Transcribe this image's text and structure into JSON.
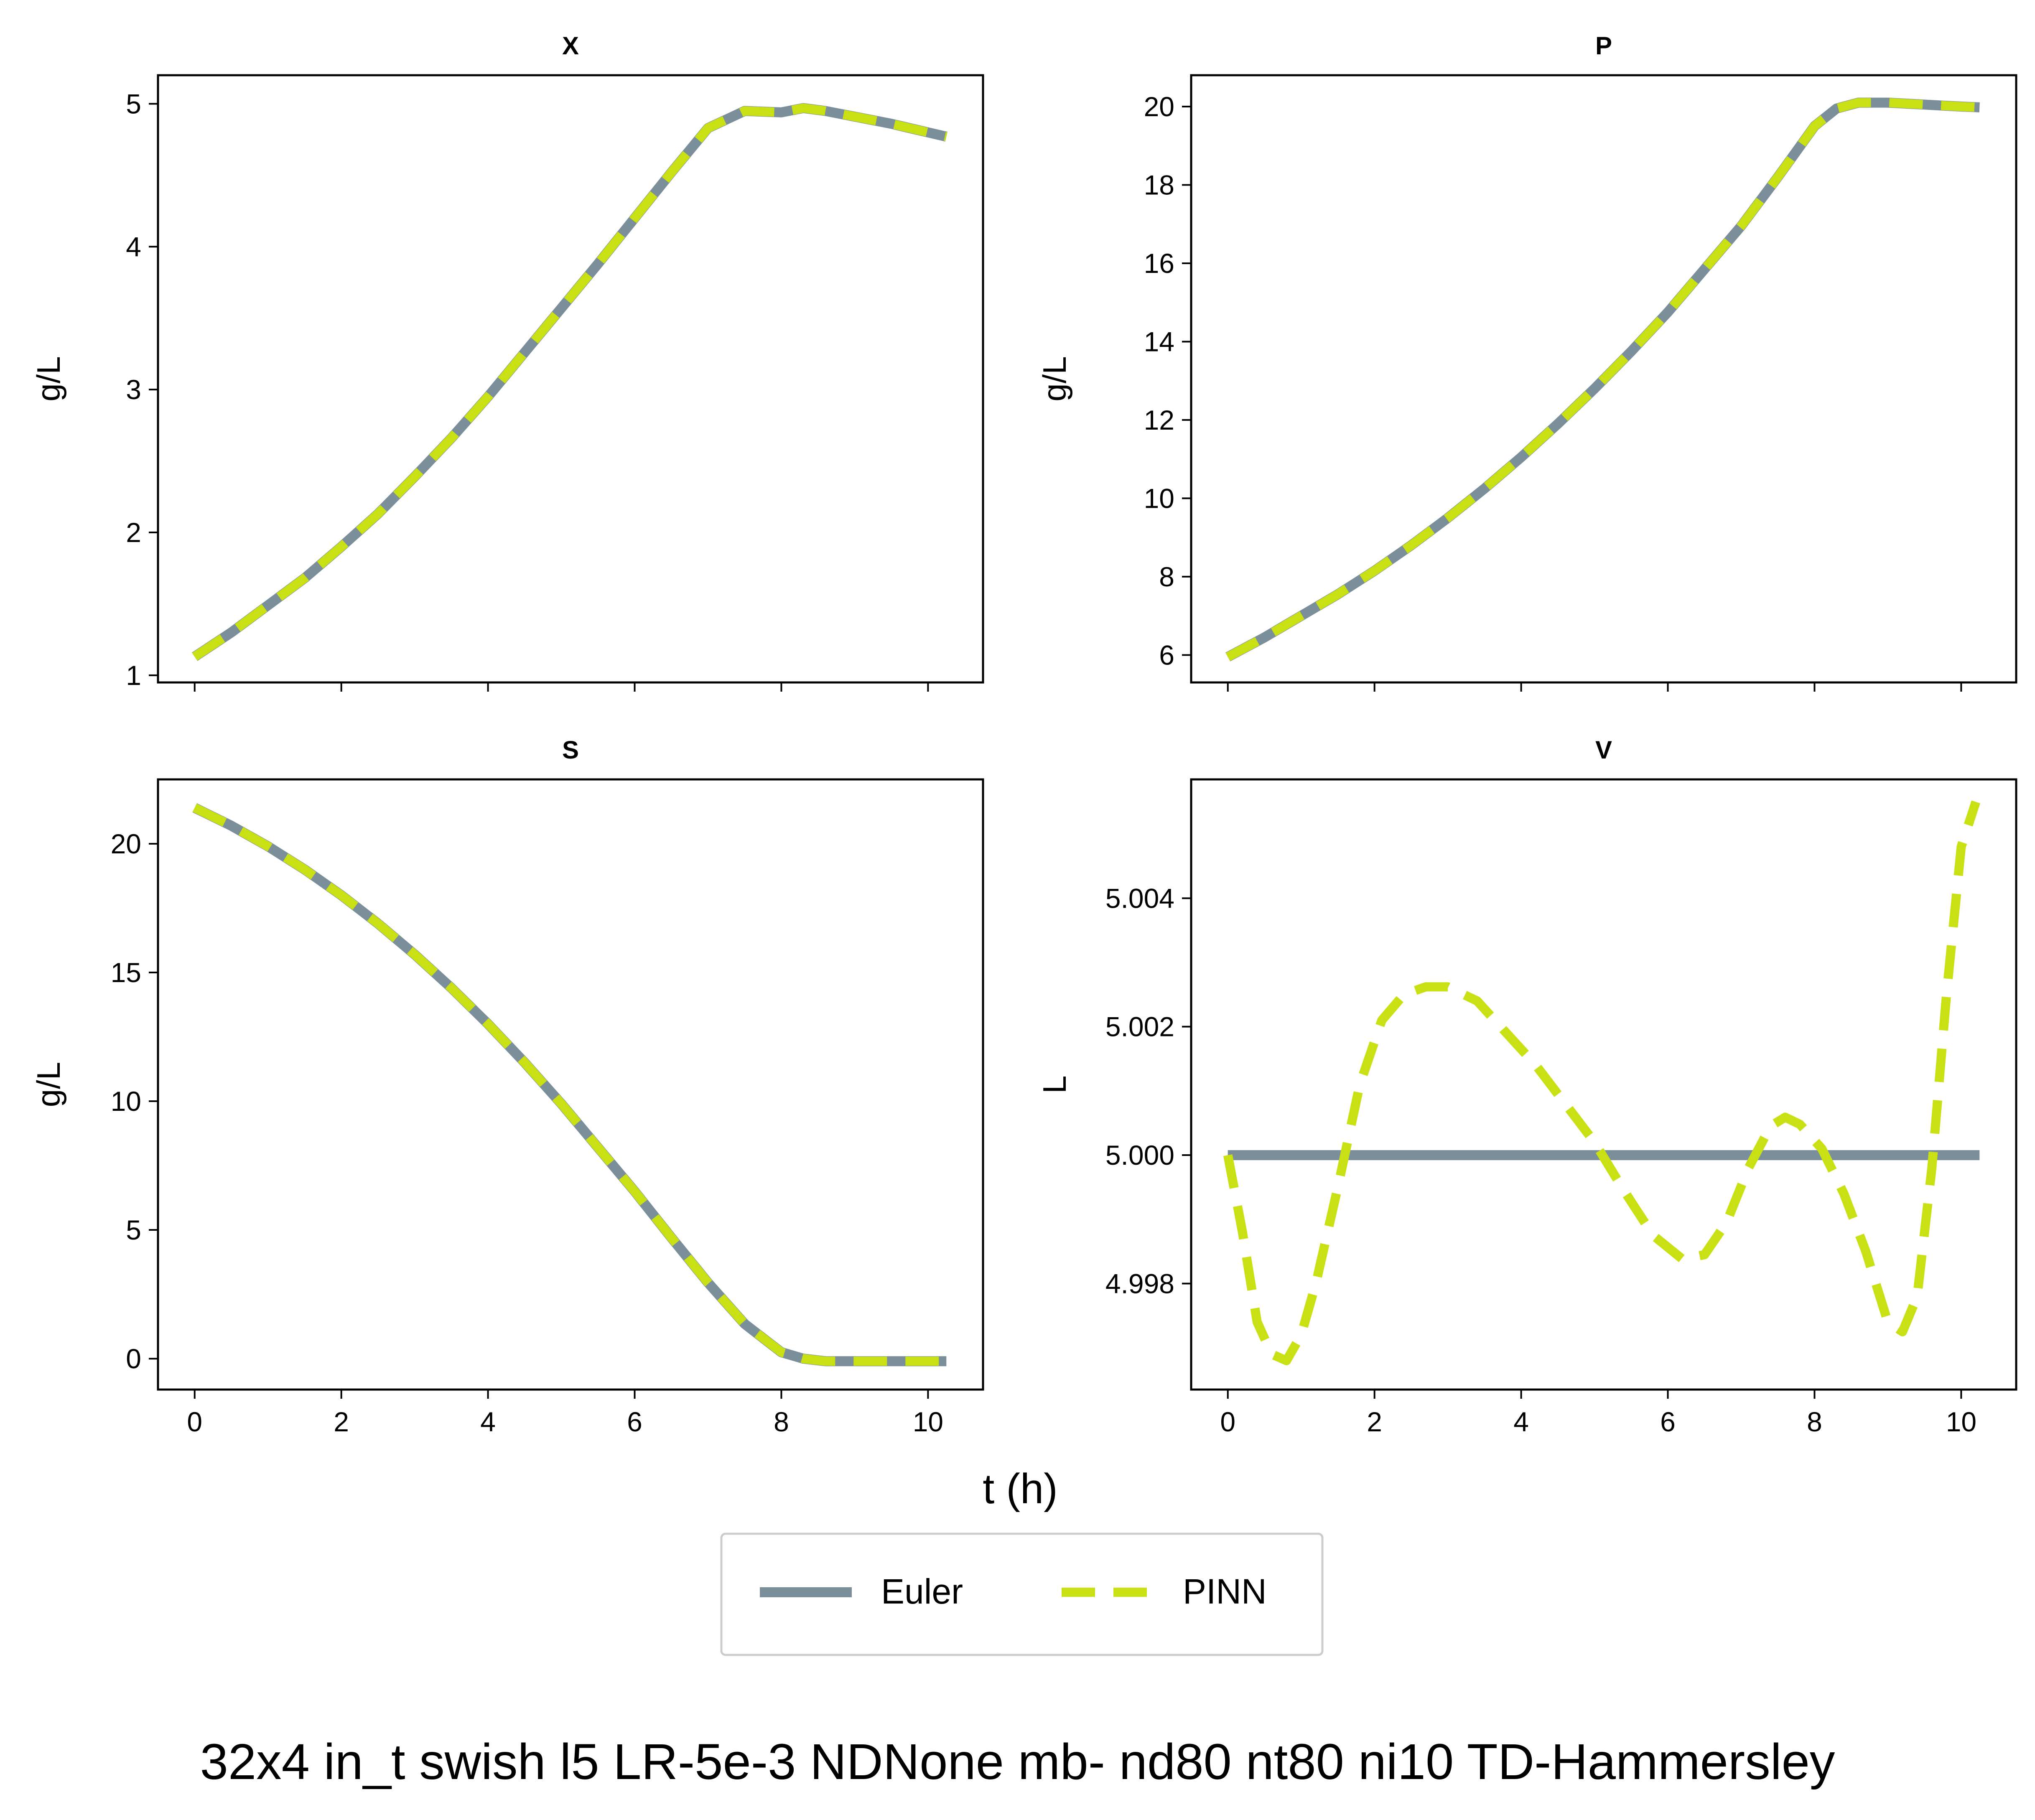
{
  "figure": {
    "xlabel": "t (h)",
    "caption": "32x4 in_t swish l5 LR-5e-3 NDNone mb- nd80 nt80 ni10 TD-Hammersley",
    "legend": {
      "placement": "lower-center",
      "entries": [
        {
          "label": "Euler",
          "color": "#7a8f9a",
          "style": "solid"
        },
        {
          "label": "PINN",
          "color": "#c8e014",
          "style": "dashed"
        }
      ]
    }
  },
  "chart_data": [
    {
      "type": "line",
      "title": "X",
      "ylabel": "g/L",
      "xlim": [
        -0.5,
        10.75
      ],
      "ylim": [
        0.95,
        5.2
      ],
      "xticks": [
        0,
        2,
        4,
        6,
        8,
        10
      ],
      "yticks": [
        1,
        2,
        3,
        4,
        5
      ],
      "show_xticklabels": false,
      "series": [
        {
          "name": "Euler",
          "color": "#7a8f9a",
          "style": "solid",
          "x": [
            0,
            0.5,
            1,
            1.5,
            2,
            2.5,
            3,
            3.5,
            4,
            4.5,
            5,
            5.5,
            6,
            6.5,
            7,
            7.5,
            8,
            8.3,
            8.6,
            9,
            9.5,
            10,
            10.25
          ],
          "y": [
            1.13,
            1.3,
            1.49,
            1.68,
            1.9,
            2.13,
            2.39,
            2.66,
            2.95,
            3.26,
            3.57,
            3.88,
            4.2,
            4.52,
            4.83,
            4.95,
            4.94,
            4.97,
            4.95,
            4.91,
            4.86,
            4.8,
            4.77
          ]
        },
        {
          "name": "PINN",
          "color": "#c8e014",
          "style": "dashed",
          "x": [
            0,
            0.5,
            1,
            1.5,
            2,
            2.5,
            3,
            3.5,
            4,
            4.5,
            5,
            5.5,
            6,
            6.5,
            7,
            7.5,
            8,
            8.3,
            8.6,
            9,
            9.5,
            10,
            10.25
          ],
          "y": [
            1.13,
            1.3,
            1.49,
            1.68,
            1.9,
            2.13,
            2.39,
            2.66,
            2.95,
            3.26,
            3.57,
            3.88,
            4.2,
            4.52,
            4.83,
            4.95,
            4.94,
            4.97,
            4.95,
            4.91,
            4.86,
            4.8,
            4.77
          ]
        }
      ]
    },
    {
      "type": "line",
      "title": "P",
      "ylabel": "g/L",
      "xlim": [
        -0.5,
        10.75
      ],
      "ylim": [
        5.3,
        20.8
      ],
      "xticks": [
        0,
        2,
        4,
        6,
        8,
        10
      ],
      "yticks": [
        6,
        8,
        10,
        12,
        14,
        16,
        18,
        20
      ],
      "show_xticklabels": false,
      "series": [
        {
          "name": "Euler",
          "color": "#7a8f9a",
          "style": "solid",
          "x": [
            0,
            0.5,
            1,
            1.5,
            2,
            2.5,
            3,
            3.5,
            4,
            4.5,
            5,
            5.5,
            6,
            6.5,
            7,
            7.5,
            8,
            8.3,
            8.6,
            9,
            9.5,
            10,
            10.25
          ],
          "y": [
            5.95,
            6.45,
            7.0,
            7.55,
            8.15,
            8.8,
            9.5,
            10.25,
            11.05,
            11.9,
            12.8,
            13.75,
            14.75,
            15.85,
            16.95,
            18.2,
            19.5,
            19.95,
            20.1,
            20.1,
            20.05,
            20.0,
            19.98
          ]
        },
        {
          "name": "PINN",
          "color": "#c8e014",
          "style": "dashed",
          "x": [
            0,
            0.5,
            1,
            1.5,
            2,
            2.5,
            3,
            3.5,
            4,
            4.5,
            5,
            5.5,
            6,
            6.5,
            7,
            7.5,
            8,
            8.3,
            8.6,
            9,
            9.5,
            10,
            10.25
          ],
          "y": [
            5.95,
            6.45,
            7.0,
            7.55,
            8.15,
            8.8,
            9.5,
            10.25,
            11.05,
            11.9,
            12.8,
            13.75,
            14.75,
            15.85,
            16.95,
            18.2,
            19.5,
            19.95,
            20.1,
            20.1,
            20.05,
            20.0,
            19.98
          ]
        }
      ]
    },
    {
      "type": "line",
      "title": "S",
      "ylabel": "g/L",
      "xlim": [
        -0.5,
        10.75
      ],
      "ylim": [
        -1.2,
        22.5
      ],
      "xticks": [
        0,
        2,
        4,
        6,
        8,
        10
      ],
      "yticks": [
        0,
        5,
        10,
        15,
        20
      ],
      "show_xticklabels": true,
      "series": [
        {
          "name": "Euler",
          "color": "#7a8f9a",
          "style": "solid",
          "x": [
            0,
            0.5,
            1,
            1.5,
            2,
            2.5,
            3,
            3.5,
            4,
            4.5,
            5,
            5.5,
            6,
            6.5,
            7,
            7.5,
            8,
            8.3,
            8.6,
            9,
            9.5,
            10,
            10.25
          ],
          "y": [
            21.4,
            20.7,
            19.9,
            19.0,
            18.0,
            16.9,
            15.7,
            14.4,
            13.0,
            11.5,
            9.9,
            8.2,
            6.5,
            4.7,
            2.95,
            1.35,
            0.25,
            0.0,
            -0.1,
            -0.1,
            -0.1,
            -0.1,
            -0.1
          ]
        },
        {
          "name": "PINN",
          "color": "#c8e014",
          "style": "dashed",
          "x": [
            0,
            0.5,
            1,
            1.5,
            2,
            2.5,
            3,
            3.5,
            4,
            4.5,
            5,
            5.5,
            6,
            6.5,
            7,
            7.5,
            8,
            8.3,
            8.6,
            9,
            9.5,
            10,
            10.25
          ],
          "y": [
            21.4,
            20.7,
            19.9,
            19.0,
            18.0,
            16.9,
            15.7,
            14.4,
            13.0,
            11.5,
            9.9,
            8.2,
            6.5,
            4.7,
            2.95,
            1.35,
            0.25,
            0.0,
            -0.1,
            -0.1,
            -0.1,
            -0.1,
            -0.1
          ]
        }
      ]
    },
    {
      "type": "line",
      "title": "V",
      "ylabel": "L",
      "xlim": [
        -0.5,
        10.75
      ],
      "ylim": [
        4.99635,
        5.00585
      ],
      "xticks": [
        0,
        2,
        4,
        6,
        8,
        10
      ],
      "yticks": [
        4.998,
        5.0,
        5.002,
        5.004
      ],
      "ytick_labels": [
        "4.998",
        "5.000",
        "5.002",
        "5.004"
      ],
      "show_xticklabels": true,
      "series": [
        {
          "name": "Euler",
          "color": "#7a8f9a",
          "style": "solid",
          "x": [
            0,
            10.25
          ],
          "y": [
            5.0,
            5.0
          ]
        },
        {
          "name": "PINN",
          "color": "#c8e014",
          "style": "dashed",
          "x": [
            0,
            0.2,
            0.4,
            0.6,
            0.8,
            1.0,
            1.2,
            1.5,
            1.8,
            2.1,
            2.4,
            2.7,
            3.0,
            3.4,
            3.8,
            4.2,
            4.6,
            5.0,
            5.4,
            5.8,
            6.2,
            6.5,
            6.8,
            7.1,
            7.4,
            7.6,
            7.8,
            8.1,
            8.4,
            8.7,
            9.0,
            9.2,
            9.4,
            9.6,
            9.8,
            10.0,
            10.2
          ],
          "y": [
            5.0,
            4.9988,
            4.9974,
            4.9969,
            4.9968,
            4.9972,
            4.998,
            4.9995,
            5.0011,
            5.0021,
            5.0025,
            5.00262,
            5.00262,
            5.0024,
            5.0019,
            5.0014,
            5.0008,
            5.0002,
            4.99945,
            4.99875,
            4.99838,
            4.99845,
            4.99895,
            4.9998,
            5.00045,
            5.00059,
            5.00048,
            5.0001,
            4.9994,
            4.9985,
            4.9974,
            4.99725,
            4.9978,
            4.9998,
            5.0025,
            5.0048,
            5.0055
          ]
        }
      ]
    }
  ]
}
